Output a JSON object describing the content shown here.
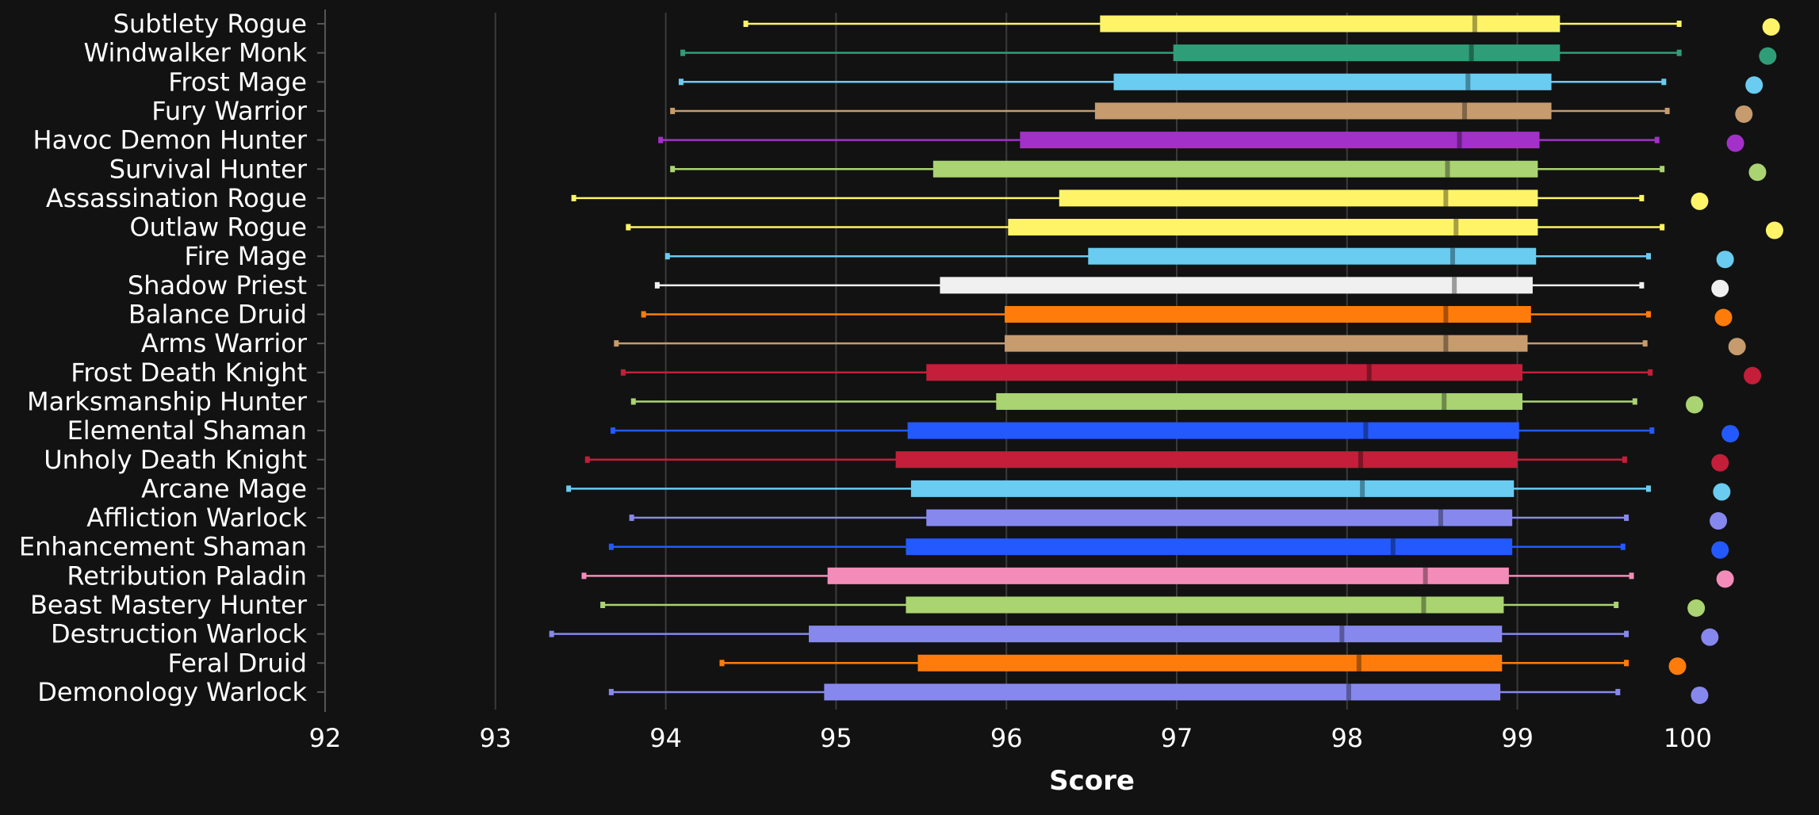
{
  "chart_data": {
    "type": "box",
    "title": "",
    "xlabel": "Score",
    "ylabel": "",
    "xlim": [
      92,
      100.8
    ],
    "xticks": [
      92,
      93,
      94,
      95,
      96,
      97,
      98,
      99,
      100
    ],
    "grid": true,
    "gridlines": [
      93,
      94,
      95,
      96,
      97,
      98,
      99
    ],
    "legend": "none",
    "series": [
      {
        "name": "Subtlety Rogue",
        "color": "#FFF468",
        "min": 94.47,
        "q1": 96.55,
        "median": 98.75,
        "q3": 99.25,
        "max": 99.95,
        "max_point": 100.49
      },
      {
        "name": "Windwalker Monk",
        "color": "#2F9E78",
        "min": 94.1,
        "q1": 96.98,
        "median": 98.73,
        "q3": 99.25,
        "max": 99.95,
        "max_point": 100.47
      },
      {
        "name": "Frost Mage",
        "color": "#69CCF0",
        "min": 94.09,
        "q1": 96.63,
        "median": 98.71,
        "q3": 99.2,
        "max": 99.86,
        "max_point": 100.39
      },
      {
        "name": "Fury Warrior",
        "color": "#C69B6D",
        "min": 94.04,
        "q1": 96.52,
        "median": 98.69,
        "q3": 99.2,
        "max": 99.88,
        "max_point": 100.33
      },
      {
        "name": "Havoc Demon Hunter",
        "color": "#A330C9",
        "min": 93.97,
        "q1": 96.08,
        "median": 98.66,
        "q3": 99.13,
        "max": 99.82,
        "max_point": 100.28
      },
      {
        "name": "Survival Hunter",
        "color": "#AAD372",
        "min": 94.04,
        "q1": 95.57,
        "median": 98.59,
        "q3": 99.12,
        "max": 99.85,
        "max_point": 100.41
      },
      {
        "name": "Assassination Rogue",
        "color": "#FFF468",
        "min": 93.46,
        "q1": 96.31,
        "median": 98.58,
        "q3": 99.12,
        "max": 99.73,
        "max_point": 100.07
      },
      {
        "name": "Outlaw Rogue",
        "color": "#FFF468",
        "min": 93.78,
        "q1": 96.01,
        "median": 98.64,
        "q3": 99.12,
        "max": 99.85,
        "max_point": 100.51
      },
      {
        "name": "Fire Mage",
        "color": "#69CCF0",
        "min": 94.01,
        "q1": 96.48,
        "median": 98.62,
        "q3": 99.11,
        "max": 99.77,
        "max_point": 100.22
      },
      {
        "name": "Shadow Priest",
        "color": "#F0F0F0",
        "min": 93.95,
        "q1": 95.61,
        "median": 98.63,
        "q3": 99.09,
        "max": 99.73,
        "max_point": 100.19
      },
      {
        "name": "Balance Druid",
        "color": "#FF7C0A",
        "min": 93.87,
        "q1": 95.99,
        "median": 98.58,
        "q3": 99.08,
        "max": 99.77,
        "max_point": 100.21
      },
      {
        "name": "Arms Warrior",
        "color": "#C69B6D",
        "min": 93.71,
        "q1": 95.99,
        "median": 98.58,
        "q3": 99.06,
        "max": 99.75,
        "max_point": 100.29
      },
      {
        "name": "Frost Death Knight",
        "color": "#C41E3A",
        "min": 93.75,
        "q1": 95.53,
        "median": 98.13,
        "q3": 99.03,
        "max": 99.78,
        "max_point": 100.38
      },
      {
        "name": "Marksmanship Hunter",
        "color": "#AAD372",
        "min": 93.81,
        "q1": 95.94,
        "median": 98.57,
        "q3": 99.03,
        "max": 99.69,
        "max_point": 100.04
      },
      {
        "name": "Elemental Shaman",
        "color": "#2459FF",
        "min": 93.69,
        "q1": 95.42,
        "median": 98.11,
        "q3": 99.01,
        "max": 99.79,
        "max_point": 100.25
      },
      {
        "name": "Unholy Death Knight",
        "color": "#C41E3A",
        "min": 93.54,
        "q1": 95.35,
        "median": 98.08,
        "q3": 99.0,
        "max": 99.63,
        "max_point": 100.19
      },
      {
        "name": "Arcane Mage",
        "color": "#69CCF0",
        "min": 93.43,
        "q1": 95.44,
        "median": 98.09,
        "q3": 98.98,
        "max": 99.77,
        "max_point": 100.2
      },
      {
        "name": "Affliction Warlock",
        "color": "#8788EE",
        "min": 93.8,
        "q1": 95.53,
        "median": 98.55,
        "q3": 98.97,
        "max": 99.64,
        "max_point": 100.18
      },
      {
        "name": "Enhancement Shaman",
        "color": "#2459FF",
        "min": 93.68,
        "q1": 95.41,
        "median": 98.27,
        "q3": 98.97,
        "max": 99.62,
        "max_point": 100.19
      },
      {
        "name": "Retribution Paladin",
        "color": "#F48CBA",
        "min": 93.52,
        "q1": 94.95,
        "median": 98.46,
        "q3": 98.95,
        "max": 99.67,
        "max_point": 100.22
      },
      {
        "name": "Beast Mastery Hunter",
        "color": "#AAD372",
        "min": 93.63,
        "q1": 95.41,
        "median": 98.45,
        "q3": 98.92,
        "max": 99.58,
        "max_point": 100.05
      },
      {
        "name": "Destruction Warlock",
        "color": "#8788EE",
        "min": 93.33,
        "q1": 94.84,
        "median": 97.97,
        "q3": 98.91,
        "max": 99.64,
        "max_point": 100.13
      },
      {
        "name": "Feral Druid",
        "color": "#FF7C0A",
        "min": 94.33,
        "q1": 95.48,
        "median": 98.07,
        "q3": 98.91,
        "max": 99.64,
        "max_point": 99.94
      },
      {
        "name": "Demonology Warlock",
        "color": "#8788EE",
        "min": 93.68,
        "q1": 94.93,
        "median": 98.01,
        "q3": 98.9,
        "max": 99.59,
        "max_point": 100.07
      }
    ]
  }
}
